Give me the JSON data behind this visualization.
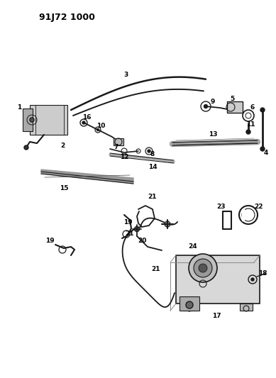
{
  "title": "91J72 1000",
  "bg": "#ffffff",
  "lc": "#1a1a1a",
  "figsize": [
    3.89,
    5.33
  ],
  "dpi": 100
}
